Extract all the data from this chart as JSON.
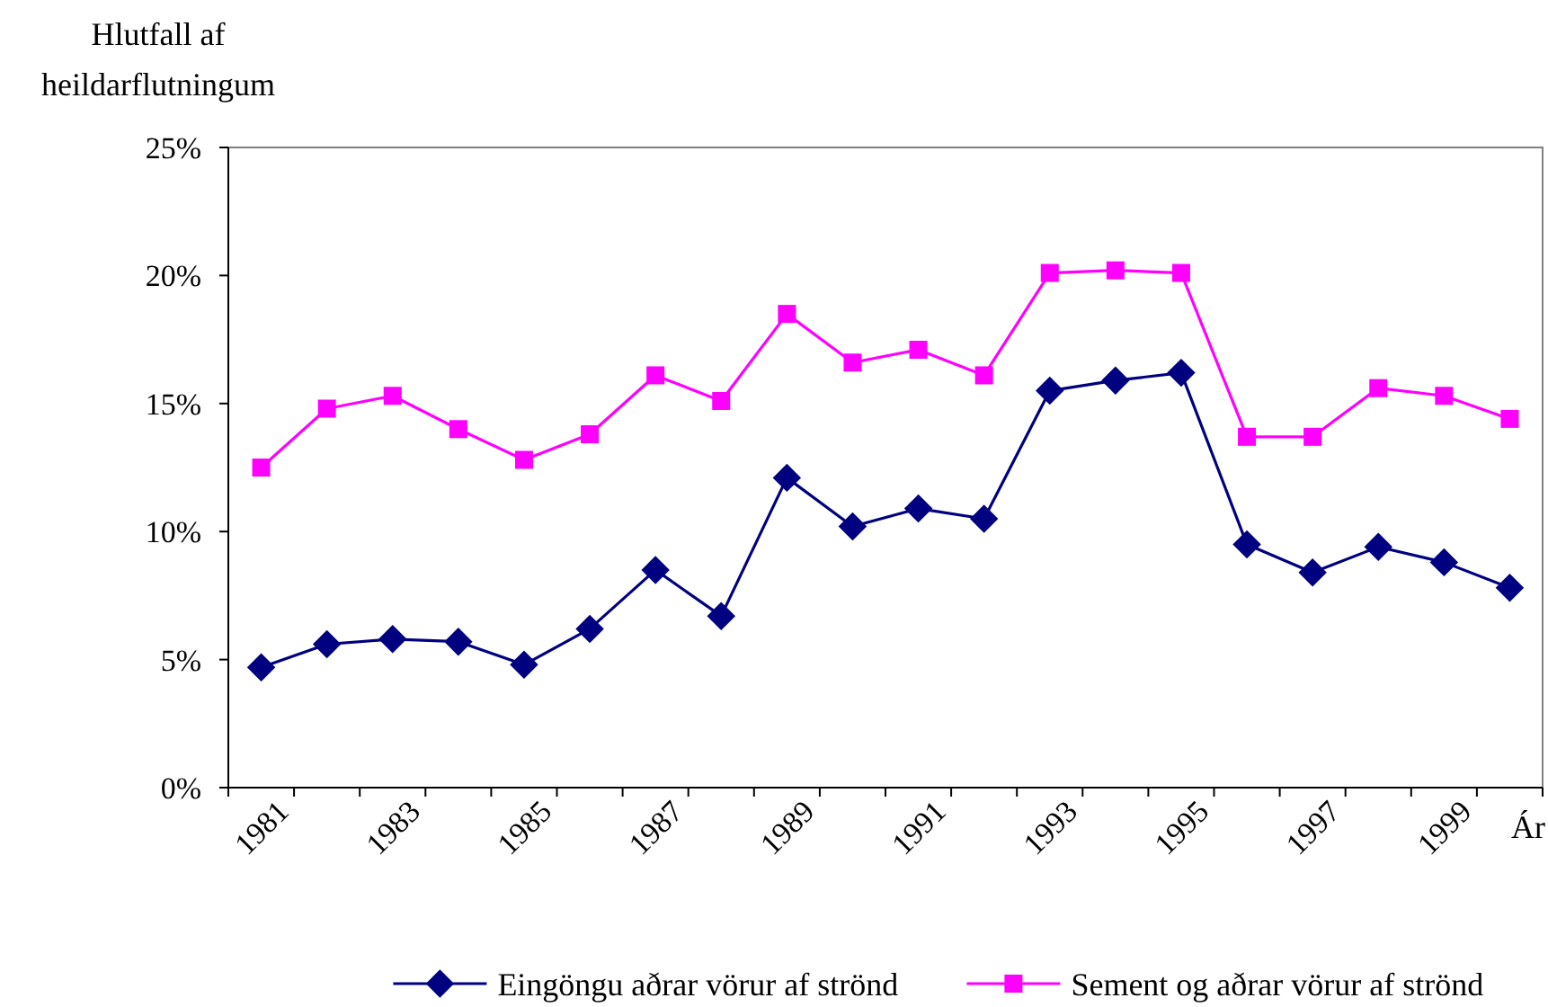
{
  "chart_data": {
    "type": "line",
    "ylabel": "Hlutfall af\nheildarflutningum",
    "xlabel": "Ár",
    "categories": [
      "1981",
      null,
      "1983",
      null,
      "1985",
      null,
      "1987",
      null,
      "1989",
      null,
      "1991",
      null,
      "1993",
      null,
      "1995",
      null,
      "1997",
      null,
      "1999",
      null
    ],
    "series": [
      {
        "name": "Eingöngu aðrar vörur af strönd",
        "color": "#000080",
        "marker": "diamond",
        "values": [
          4.7,
          5.6,
          5.8,
          5.7,
          4.8,
          6.2,
          8.5,
          6.7,
          12.1,
          10.2,
          10.9,
          10.5,
          15.5,
          15.9,
          16.2,
          9.5,
          8.4,
          9.4,
          8.8,
          7.8
        ]
      },
      {
        "name": "Sement og aðrar vörur af strönd",
        "color": "#ff00ff",
        "marker": "square",
        "values": [
          12.5,
          14.8,
          15.3,
          14.0,
          12.8,
          13.8,
          16.1,
          15.1,
          18.5,
          16.6,
          17.1,
          16.1,
          20.1,
          20.2,
          20.1,
          13.7,
          13.7,
          15.6,
          15.3,
          14.4
        ]
      }
    ],
    "ylim": [
      0,
      25
    ],
    "yticks": [
      {
        "value": 0,
        "label": "0%"
      },
      {
        "value": 5,
        "label": "5%"
      },
      {
        "value": 10,
        "label": "10%"
      },
      {
        "value": 15,
        "label": "15%"
      },
      {
        "value": 20,
        "label": "20%"
      },
      {
        "value": 25,
        "label": "25%"
      }
    ],
    "grid": false,
    "legend": "bottom",
    "line_style": "solid"
  }
}
